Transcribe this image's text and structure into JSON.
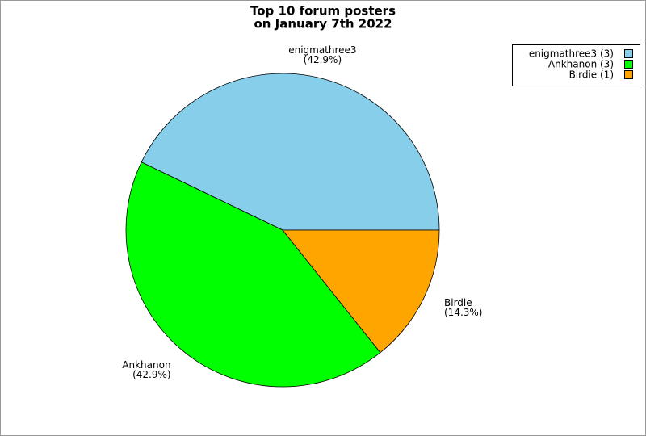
{
  "chart_data": {
    "type": "pie",
    "title": [
      "Top 10 forum posters",
      "on January 7th 2022"
    ],
    "categories": [
      "enigmathree3",
      "Ankhanon",
      "Birdie"
    ],
    "values": [
      42.9,
      42.9,
      14.3
    ],
    "value_labels": [
      "(42.9%)",
      "(42.9%)",
      "(14.3%)"
    ],
    "colors": [
      "#87ceeb",
      "#00ff00",
      "#ffa500"
    ],
    "legend_labels": [
      "enigmathree3 (3)",
      "Ankhanon (3)",
      "Birdie (1)"
    ],
    "legend": "upper right"
  }
}
